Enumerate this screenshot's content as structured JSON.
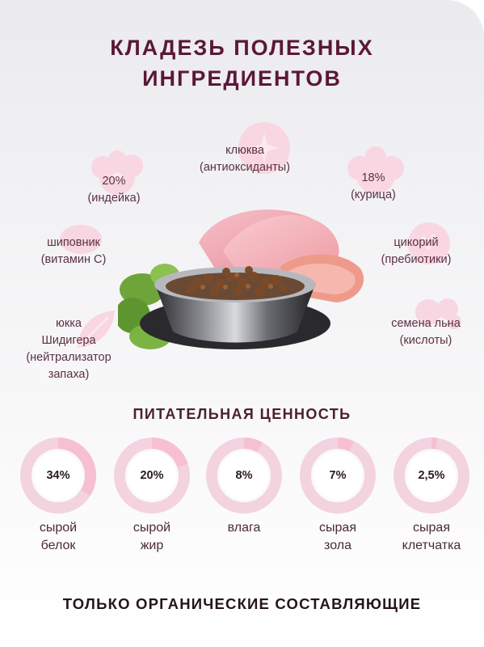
{
  "heading": {
    "line1": "КЛАДЕЗЬ ПОЛЕЗНЫХ",
    "line2": "ИНГРЕДИЕНТОВ"
  },
  "ingredients": {
    "cranberry": {
      "name": "клюква",
      "note": "(антиоксиданты)"
    },
    "turkey": {
      "name": "20%",
      "note": "(индейка)"
    },
    "chicken": {
      "name": "18%",
      "note": "(курица)"
    },
    "rosehip": {
      "name": "шиповник",
      "note": "(витамин С)"
    },
    "chicory": {
      "name": "цикорий",
      "note": "(пребиотики)"
    },
    "yucca": {
      "line1": "юкка",
      "line2": "Шидигера",
      "line3": "(нейтрализатор",
      "line4": "запаха)"
    },
    "flax": {
      "name": "семена льна",
      "note": "(кислоты)"
    }
  },
  "nutrition": {
    "title": "ПИТАТЕЛЬНАЯ ЦЕННОСТЬ",
    "items": [
      {
        "value": "34%",
        "label1": "сырой",
        "label2": "белок",
        "fraction": 0.34
      },
      {
        "value": "20%",
        "label1": "сырой",
        "label2": "жир",
        "fraction": 0.2
      },
      {
        "value": "8%",
        "label1": "влага",
        "label2": "",
        "fraction": 0.08
      },
      {
        "value": "7%",
        "label1": "сырая",
        "label2": "зола",
        "fraction": 0.07
      },
      {
        "value": "2,5%",
        "label1": "сырая",
        "label2": "клетчатка",
        "fraction": 0.025
      }
    ]
  },
  "footer": {
    "title": "ТОЛЬКО ОРГАНИЧЕСКИЕ СОСТАВЛЯЮЩИЕ"
  },
  "colors": {
    "heading": "#5a1838",
    "ring_track": "#f3d3df",
    "ring_fill": "#f7c0d2",
    "blob": "#f8d6e2",
    "text": "#5a3142"
  },
  "icons": [
    "flower-icon",
    "sparkle-icon",
    "apple-icon",
    "leaf-icon",
    "cloud-icon",
    "strawberry-icon"
  ]
}
